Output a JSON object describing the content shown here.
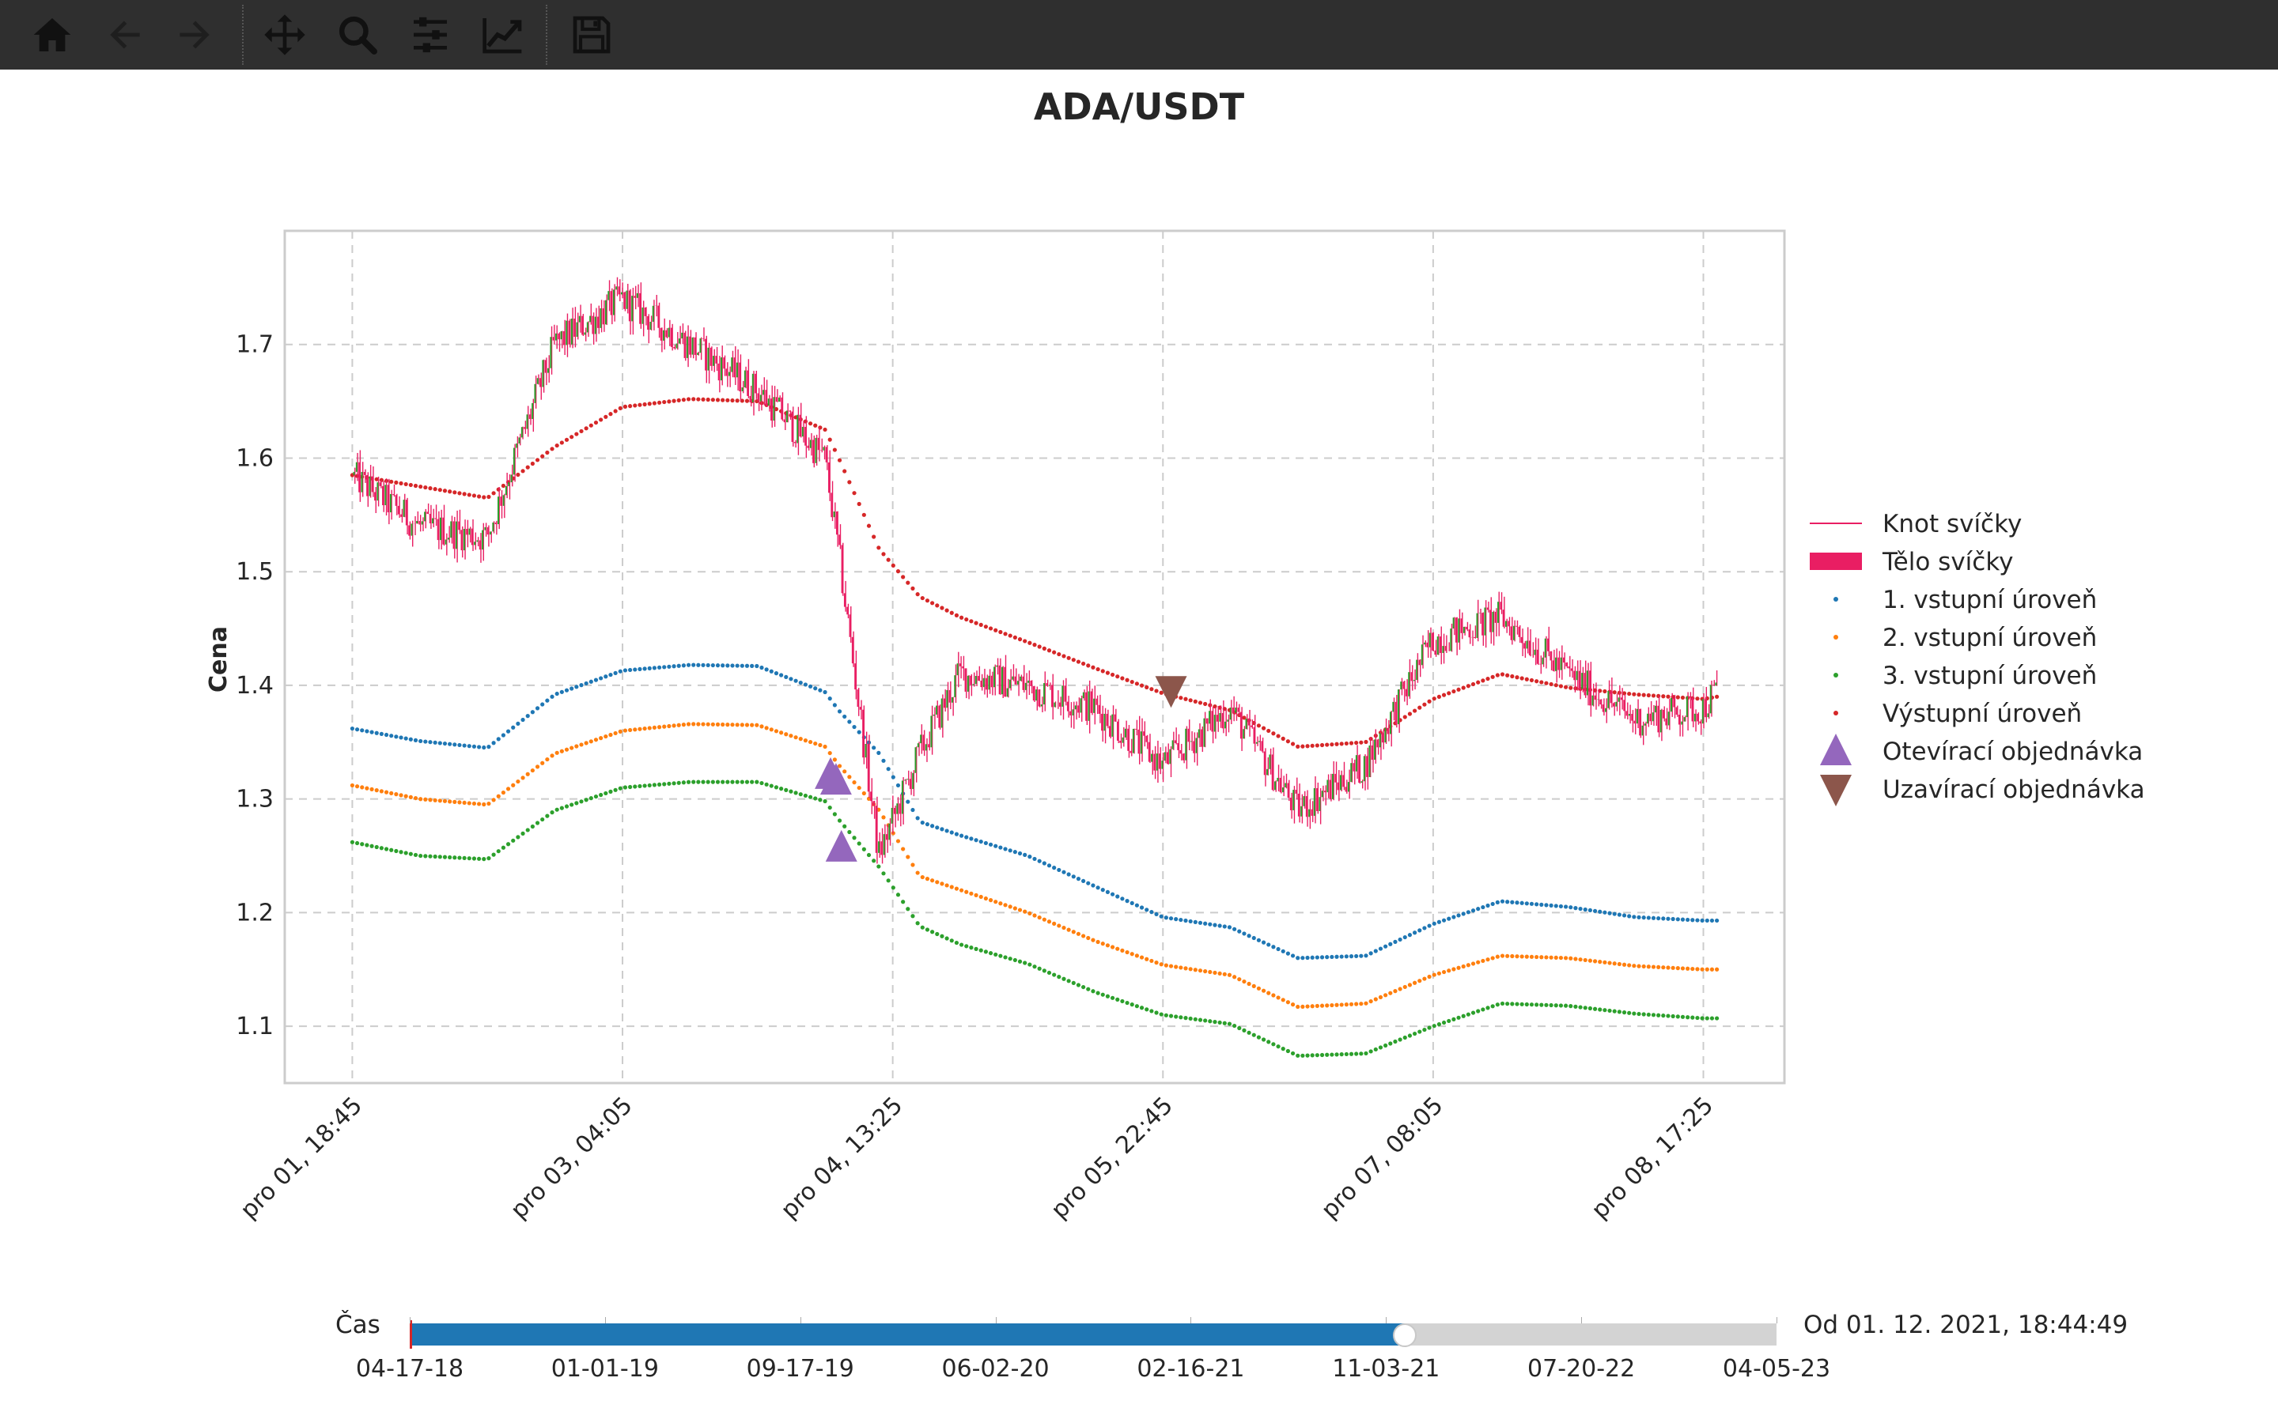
{
  "toolbar": {
    "buttons": [
      {
        "name": "home-icon",
        "label": "Home",
        "enabled": true
      },
      {
        "name": "back-arrow-icon",
        "label": "Back",
        "enabled": false
      },
      {
        "name": "forward-arrow-icon",
        "label": "Forward",
        "enabled": false
      },
      {
        "name": "pan-icon",
        "label": "Pan",
        "enabled": true
      },
      {
        "name": "zoom-icon",
        "label": "Zoom",
        "enabled": true
      },
      {
        "name": "configure-subplots-icon",
        "label": "Subplots",
        "enabled": true
      },
      {
        "name": "edit-axis-icon",
        "label": "Customize",
        "enabled": true
      },
      {
        "name": "save-icon",
        "label": "Save",
        "enabled": true
      }
    ]
  },
  "colors": {
    "toolbar_bg": "#2f2f2f",
    "candle_wick": "#e91e63",
    "candle_body": "#e91e63",
    "candle_up": "#2ca02c",
    "entry1": "#1f77b4",
    "entry2": "#ff7f0e",
    "entry3": "#2ca02c",
    "exit": "#d62728",
    "open_order": "#9467bd",
    "close_order": "#8c564b",
    "slider_fill": "#1f77b4"
  },
  "chart_data": {
    "type": "line",
    "title": "ADA/USDT",
    "xlabel": "",
    "ylabel": "Cena",
    "ylim": [
      1.05,
      1.8
    ],
    "yticks": [
      1.1,
      1.2,
      1.3,
      1.4,
      1.5,
      1.6,
      1.7
    ],
    "ytick_labels": [
      "1.1",
      "1.2",
      "1.3",
      "1.4",
      "1.5",
      "1.6",
      "1.7"
    ],
    "xticks": [
      "pro 01, 18:45",
      "pro 03, 04:05",
      "pro 04, 13:25",
      "pro 05, 22:45",
      "pro 07, 08:05",
      "pro 08, 17:25"
    ],
    "xlim_ticks": [
      -0.25,
      5.3
    ],
    "grid": true,
    "legend_position": "outside-right",
    "x": [
      0.0,
      0.25,
      0.5,
      0.75,
      1.0,
      1.25,
      1.5,
      1.75,
      1.8,
      1.95,
      2.1,
      2.25,
      2.5,
      2.75,
      3.0,
      3.25,
      3.5,
      3.75,
      4.0,
      4.25,
      4.5,
      4.75,
      5.0,
      5.05
    ],
    "series": [
      {
        "name": "Knot svíčky",
        "kind": "candle-wick",
        "values": [
          1.585,
          1.54,
          1.53,
          1.7,
          1.74,
          1.7,
          1.66,
          1.6,
          1.52,
          1.25,
          1.34,
          1.41,
          1.4,
          1.38,
          1.33,
          1.38,
          1.29,
          1.33,
          1.44,
          1.46,
          1.41,
          1.37,
          1.38,
          1.395
        ]
      },
      {
        "name": "Tělo svíčky",
        "kind": "candle-body",
        "values": [
          1.585,
          1.54,
          1.53,
          1.7,
          1.74,
          1.7,
          1.66,
          1.6,
          1.52,
          1.25,
          1.34,
          1.41,
          1.4,
          1.38,
          1.33,
          1.38,
          1.29,
          1.33,
          1.44,
          1.46,
          1.41,
          1.37,
          1.38,
          1.395
        ]
      },
      {
        "name": "1. vstupní úroveň",
        "kind": "dots",
        "values": [
          1.362,
          1.351,
          1.345,
          1.392,
          1.413,
          1.418,
          1.417,
          1.394,
          1.378,
          1.34,
          1.28,
          1.268,
          1.25,
          1.223,
          1.196,
          1.187,
          1.16,
          1.162,
          1.19,
          1.21,
          1.205,
          1.196,
          1.193,
          1.193
        ]
      },
      {
        "name": "2. vstupní úroveň",
        "kind": "dots",
        "values": [
          1.312,
          1.3,
          1.295,
          1.34,
          1.36,
          1.366,
          1.365,
          1.346,
          1.33,
          1.29,
          1.232,
          1.22,
          1.2,
          1.175,
          1.154,
          1.145,
          1.117,
          1.12,
          1.145,
          1.162,
          1.16,
          1.153,
          1.15,
          1.15
        ]
      },
      {
        "name": "3. vstupní úroveň",
        "kind": "dots",
        "values": [
          1.262,
          1.25,
          1.247,
          1.29,
          1.31,
          1.315,
          1.315,
          1.298,
          1.282,
          1.24,
          1.188,
          1.172,
          1.155,
          1.13,
          1.11,
          1.102,
          1.074,
          1.076,
          1.1,
          1.12,
          1.118,
          1.111,
          1.107,
          1.107
        ]
      },
      {
        "name": "Výstupní úroveň",
        "kind": "dots",
        "values": [
          1.585,
          1.575,
          1.565,
          1.61,
          1.645,
          1.652,
          1.65,
          1.625,
          1.6,
          1.52,
          1.478,
          1.46,
          1.438,
          1.415,
          1.393,
          1.378,
          1.346,
          1.35,
          1.388,
          1.41,
          1.398,
          1.392,
          1.388,
          1.39
        ]
      },
      {
        "name": "Otevírací objednávka",
        "kind": "marker-up",
        "x": [
          1.77,
          1.79,
          1.81
        ],
        "values": [
          1.32,
          1.315,
          1.256
        ]
      },
      {
        "name": "Uzavírací objednávka",
        "kind": "marker-down",
        "x": [
          3.03
        ],
        "values": [
          1.397
        ]
      }
    ]
  },
  "slider": {
    "label": "Čas",
    "value_text": "Od 01. 12. 2021, 18:44:49",
    "fill_fraction": 0.728,
    "ticks": [
      "04-17-18",
      "01-01-19",
      "09-17-19",
      "06-02-20",
      "02-16-21",
      "11-03-21",
      "07-20-22",
      "04-05-23"
    ]
  }
}
